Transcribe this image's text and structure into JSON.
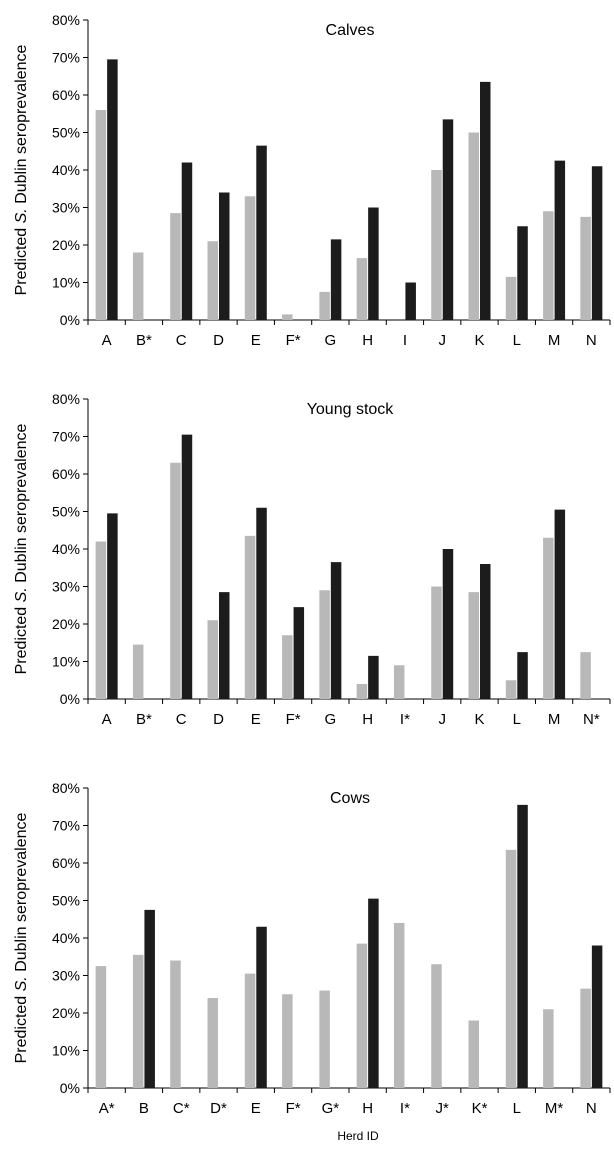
{
  "figure": {
    "xlabel": "Herd ID",
    "ylabel_prefix": "Predicted ",
    "ylabel_italic": "S.",
    "ylabel_suffix": " Dublin seroprevalence"
  },
  "colors": {
    "series1": "#b8b8b8",
    "series2": "#1c1c1c"
  },
  "chart_data": [
    {
      "type": "bar",
      "title": "Calves",
      "ylabel": "Predicted S. Dublin seroprevalence",
      "xlabel": "",
      "ylim": [
        0,
        80
      ],
      "yticks": [
        "0%",
        "10%",
        "20%",
        "30%",
        "40%",
        "50%",
        "60%",
        "70%",
        "80%"
      ],
      "categories": [
        "A",
        "B*",
        "C",
        "D",
        "E",
        "F*",
        "G",
        "H",
        "I",
        "J",
        "K",
        "L",
        "M",
        "N"
      ],
      "series": [
        {
          "values": [
            56,
            18,
            28.5,
            21,
            33,
            1.5,
            7.5,
            16.5,
            null,
            40,
            50,
            11.5,
            29,
            27.5
          ]
        },
        {
          "values": [
            69.5,
            null,
            42,
            34,
            46.5,
            null,
            21.5,
            30,
            10,
            53.5,
            63.5,
            25,
            42.5,
            41
          ]
        }
      ]
    },
    {
      "type": "bar",
      "title": "Young stock",
      "ylabel": "Predicted S. Dublin seroprevalence",
      "xlabel": "",
      "ylim": [
        0,
        80
      ],
      "yticks": [
        "0%",
        "10%",
        "20%",
        "30%",
        "40%",
        "50%",
        "60%",
        "70%",
        "80%"
      ],
      "categories": [
        "A",
        "B*",
        "C",
        "D",
        "E",
        "F*",
        "G",
        "H",
        "I*",
        "J",
        "K",
        "L",
        "M",
        "N*"
      ],
      "series": [
        {
          "values": [
            42,
            14.5,
            63,
            21,
            43.5,
            17,
            29,
            4,
            9,
            30,
            28.5,
            5,
            43,
            12.5
          ]
        },
        {
          "values": [
            49.5,
            null,
            70.5,
            28.5,
            51,
            24.5,
            36.5,
            11.5,
            null,
            40,
            36,
            12.5,
            50.5,
            null
          ]
        }
      ]
    },
    {
      "type": "bar",
      "title": "Cows",
      "ylabel": "Predicted S. Dublin seroprevalence",
      "xlabel": "Herd ID",
      "ylim": [
        0,
        80
      ],
      "yticks": [
        "0%",
        "10%",
        "20%",
        "30%",
        "40%",
        "50%",
        "60%",
        "70%",
        "80%"
      ],
      "categories": [
        "A*",
        "B",
        "C*",
        "D*",
        "E",
        "F*",
        "G*",
        "H",
        "I*",
        "J*",
        "K*",
        "L",
        "M*",
        "N"
      ],
      "series": [
        {
          "values": [
            32.5,
            35.5,
            34,
            24,
            30.5,
            25,
            26,
            38.5,
            44,
            33,
            18,
            63.5,
            21,
            26.5
          ]
        },
        {
          "values": [
            null,
            47.5,
            null,
            null,
            43,
            null,
            null,
            50.5,
            null,
            null,
            null,
            75.5,
            null,
            38
          ]
        }
      ]
    }
  ]
}
